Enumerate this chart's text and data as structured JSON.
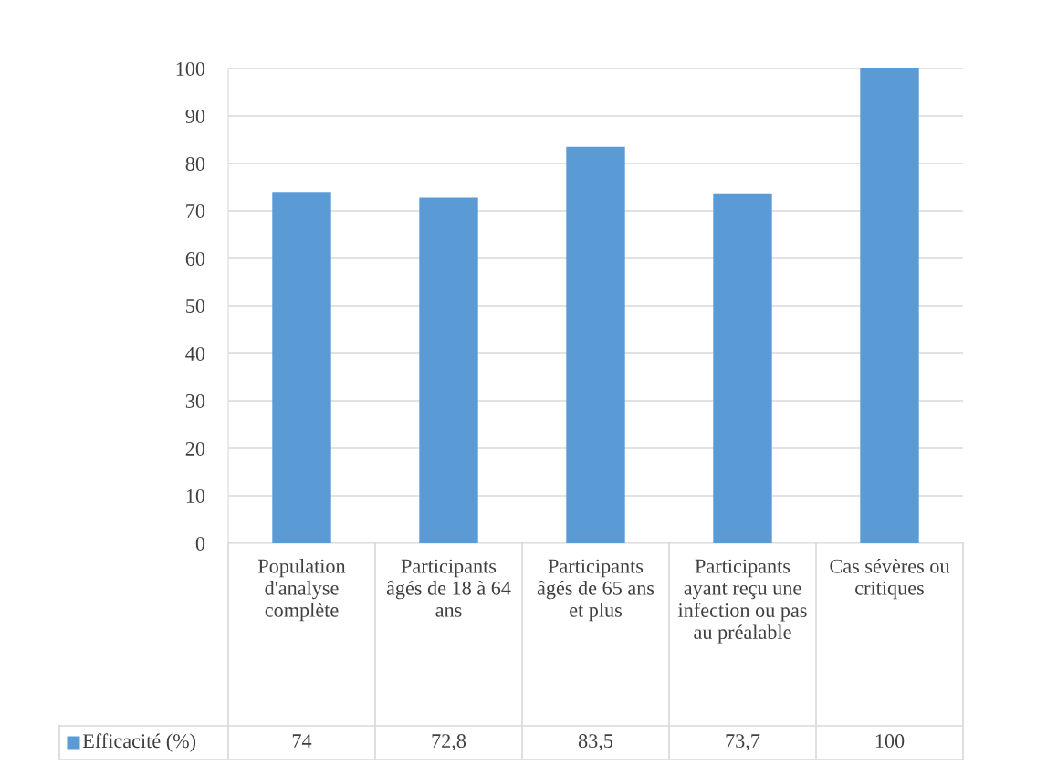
{
  "chart_data": {
    "type": "bar",
    "categories": [
      "Population d'analyse complète",
      "Participants âgés de 18 à 64 ans",
      "Participants âgés de 65 ans et plus",
      "Participants ayant reçu une infection ou pas au préalable",
      "Cas sévères ou critiques"
    ],
    "series": [
      {
        "name": "Efficacité (%)",
        "color": "#5b9bd5",
        "values": [
          74,
          72.8,
          83.5,
          73.7,
          100
        ],
        "value_labels": [
          "74",
          "72,8",
          "83,5",
          "73,7",
          "100"
        ]
      }
    ],
    "ylim": [
      0,
      100
    ],
    "yticks": [
      0,
      10,
      20,
      30,
      40,
      50,
      60,
      70,
      80,
      90,
      100
    ],
    "grid": "y",
    "legend": "bottom"
  }
}
